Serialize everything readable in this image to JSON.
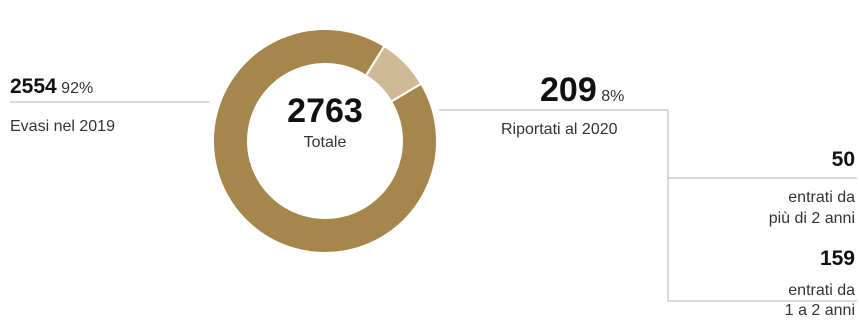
{
  "chart_data": {
    "type": "pie",
    "total": 2763,
    "total_label": "Totale",
    "slices": [
      {
        "label": "Evasi nel 2019",
        "value": 2554,
        "percent": "92%",
        "color": "#a5874d"
      },
      {
        "label": "Riportati al 2020",
        "value": 209,
        "percent": "8%",
        "color": "#cfb995"
      }
    ],
    "breakdown": [
      {
        "value": 50,
        "label_line1": "entrati da",
        "label_line2": "più di 2 anni"
      },
      {
        "value": 159,
        "label_line1": "entrati da",
        "label_line2": "1 a 2 anni"
      }
    ]
  }
}
